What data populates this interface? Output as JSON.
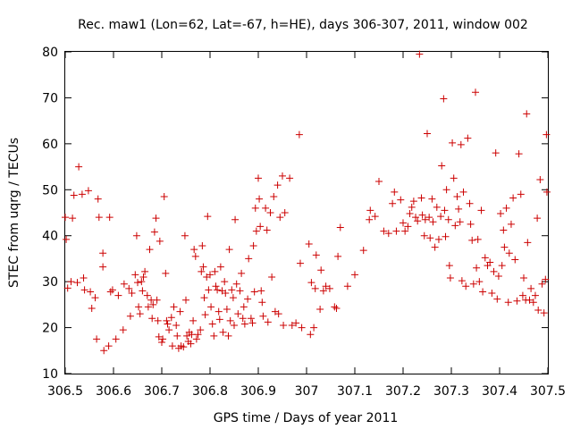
{
  "chart_data": {
    "type": "scatter",
    "title": "Rec. maw1 (Lon=62, Lat=-67, h=HE), days 306-307, 2011, window 002",
    "xlabel": "GPS time / Days of year 2011",
    "ylabel": "STEC from uqrg / TECUs",
    "xlim": [
      306.5,
      307.5
    ],
    "ylim": [
      10,
      80
    ],
    "xticks": [
      306.5,
      306.6,
      306.7,
      306.8,
      306.9,
      307,
      307.1,
      307.2,
      307.3,
      307.4,
      307.5
    ],
    "xtick_labels": [
      "306.5",
      "306.6",
      "306.7",
      "306.8",
      "306.9",
      "307",
      "307.1",
      "307.2",
      "307.3",
      "307.4",
      "307.5"
    ],
    "yticks": [
      10,
      20,
      30,
      40,
      50,
      60,
      70,
      80
    ],
    "ytick_labels": [
      "10",
      "20",
      "30",
      "40",
      "50",
      "60",
      "70",
      "80"
    ],
    "grid": false,
    "marker": "plus",
    "color": "#cc0000",
    "points": [
      [
        306.5,
        44.0
      ],
      [
        306.502,
        39.2
      ],
      [
        306.505,
        28.6
      ],
      [
        306.512,
        30.0
      ],
      [
        306.515,
        43.8
      ],
      [
        306.518,
        48.8
      ],
      [
        306.525,
        29.8
      ],
      [
        306.528,
        55.0
      ],
      [
        306.535,
        49.0
      ],
      [
        306.538,
        30.8
      ],
      [
        306.54,
        28.2
      ],
      [
        306.548,
        49.8
      ],
      [
        306.552,
        27.8
      ],
      [
        306.555,
        24.2
      ],
      [
        306.562,
        26.5
      ],
      [
        306.565,
        17.5
      ],
      [
        306.568,
        48.0
      ],
      [
        306.57,
        44.0
      ],
      [
        306.578,
        36.2
      ],
      [
        306.578,
        33.2
      ],
      [
        306.58,
        15.0
      ],
      [
        306.59,
        16.0
      ],
      [
        306.592,
        44.0
      ],
      [
        306.594,
        27.8
      ],
      [
        306.598,
        28.2
      ],
      [
        306.605,
        17.5
      ],
      [
        306.61,
        27.0
      ],
      [
        306.62,
        19.5
      ],
      [
        306.622,
        29.5
      ],
      [
        306.632,
        28.5
      ],
      [
        306.635,
        22.5
      ],
      [
        306.638,
        27.5
      ],
      [
        306.645,
        31.5
      ],
      [
        306.648,
        40.0
      ],
      [
        306.65,
        29.8
      ],
      [
        306.652,
        24.5
      ],
      [
        306.655,
        23.0
      ],
      [
        306.658,
        30.0
      ],
      [
        306.66,
        28.0
      ],
      [
        306.662,
        31.0
      ],
      [
        306.665,
        32.2
      ],
      [
        306.67,
        27.0
      ],
      [
        306.672,
        24.5
      ],
      [
        306.675,
        37.0
      ],
      [
        306.678,
        26.0
      ],
      [
        306.68,
        22.0
      ],
      [
        306.682,
        25.0
      ],
      [
        306.685,
        40.8
      ],
      [
        306.688,
        43.8
      ],
      [
        306.69,
        26.0
      ],
      [
        306.692,
        21.5
      ],
      [
        306.694,
        18.0
      ],
      [
        306.696,
        38.8
      ],
      [
        306.7,
        16.8
      ],
      [
        306.702,
        17.5
      ],
      [
        306.705,
        48.5
      ],
      [
        306.708,
        31.8
      ],
      [
        306.71,
        21.5
      ],
      [
        306.712,
        20.8
      ],
      [
        306.715,
        19.5
      ],
      [
        306.72,
        22.2
      ],
      [
        306.722,
        16.0
      ],
      [
        306.725,
        24.5
      ],
      [
        306.73,
        20.5
      ],
      [
        306.732,
        18.2
      ],
      [
        306.735,
        15.5
      ],
      [
        306.738,
        23.5
      ],
      [
        306.74,
        16.0
      ],
      [
        306.745,
        15.8
      ],
      [
        306.748,
        40.0
      ],
      [
        306.75,
        26.0
      ],
      [
        306.752,
        18.2
      ],
      [
        306.755,
        17.0
      ],
      [
        306.757,
        19.0
      ],
      [
        306.76,
        16.5
      ],
      [
        306.762,
        18.5
      ],
      [
        306.765,
        21.5
      ],
      [
        306.767,
        37.0
      ],
      [
        306.77,
        35.5
      ],
      [
        306.772,
        17.5
      ],
      [
        306.775,
        18.5
      ],
      [
        306.78,
        19.5
      ],
      [
        306.782,
        32.2
      ],
      [
        306.784,
        37.8
      ],
      [
        306.786,
        33.2
      ],
      [
        306.788,
        26.5
      ],
      [
        306.79,
        22.8
      ],
      [
        306.793,
        31.0
      ],
      [
        306.795,
        44.2
      ],
      [
        306.797,
        28.2
      ],
      [
        306.8,
        31.5
      ],
      [
        306.802,
        24.5
      ],
      [
        306.805,
        20.8
      ],
      [
        306.808,
        18.2
      ],
      [
        306.81,
        32.2
      ],
      [
        306.812,
        29.0
      ],
      [
        306.815,
        28.2
      ],
      [
        306.818,
        23.5
      ],
      [
        306.82,
        21.8
      ],
      [
        306.822,
        33.2
      ],
      [
        306.825,
        28.0
      ],
      [
        306.827,
        19.0
      ],
      [
        306.83,
        30.0
      ],
      [
        306.832,
        27.5
      ],
      [
        306.835,
        24.0
      ],
      [
        306.838,
        18.2
      ],
      [
        306.84,
        37.0
      ],
      [
        306.842,
        21.5
      ],
      [
        306.845,
        28.2
      ],
      [
        306.848,
        26.5
      ],
      [
        306.85,
        20.5
      ],
      [
        306.852,
        43.5
      ],
      [
        306.855,
        29.5
      ],
      [
        306.858,
        23.0
      ],
      [
        306.862,
        28.0
      ],
      [
        306.865,
        31.8
      ],
      [
        306.868,
        22.0
      ],
      [
        306.87,
        24.5
      ],
      [
        306.872,
        20.8
      ],
      [
        306.878,
        26.2
      ],
      [
        306.88,
        35.0
      ],
      [
        306.885,
        22.0
      ],
      [
        306.888,
        21.0
      ],
      [
        306.89,
        37.8
      ],
      [
        306.892,
        27.8
      ],
      [
        306.894,
        46.0
      ],
      [
        306.896,
        41.0
      ],
      [
        306.9,
        52.5
      ],
      [
        306.902,
        48.0
      ],
      [
        306.904,
        42.0
      ],
      [
        306.906,
        28.0
      ],
      [
        306.908,
        25.5
      ],
      [
        306.91,
        22.5
      ],
      [
        306.915,
        46.0
      ],
      [
        306.918,
        41.2
      ],
      [
        306.92,
        21.2
      ],
      [
        306.925,
        45.0
      ],
      [
        306.928,
        31.0
      ],
      [
        306.932,
        48.5
      ],
      [
        306.935,
        23.5
      ],
      [
        306.94,
        51.0
      ],
      [
        306.942,
        23.0
      ],
      [
        306.945,
        44.0
      ],
      [
        306.95,
        53.0
      ],
      [
        306.952,
        20.5
      ],
      [
        306.955,
        45.0
      ],
      [
        306.965,
        52.5
      ],
      [
        306.97,
        20.5
      ],
      [
        306.978,
        21.0
      ],
      [
        306.985,
        62.0
      ],
      [
        306.987,
        34.0
      ],
      [
        306.99,
        20.0
      ],
      [
        307.005,
        38.2
      ],
      [
        307.008,
        18.5
      ],
      [
        307.01,
        29.8
      ],
      [
        307.015,
        20.0
      ],
      [
        307.018,
        28.5
      ],
      [
        307.02,
        35.8
      ],
      [
        307.028,
        24.0
      ],
      [
        307.03,
        32.5
      ],
      [
        307.035,
        28.0
      ],
      [
        307.04,
        29.0
      ],
      [
        307.048,
        28.5
      ],
      [
        307.058,
        24.5
      ],
      [
        307.062,
        24.2
      ],
      [
        307.065,
        35.5
      ],
      [
        307.07,
        41.8
      ],
      [
        307.085,
        29.0
      ],
      [
        307.1,
        31.5
      ],
      [
        307.118,
        36.8
      ],
      [
        307.13,
        43.5
      ],
      [
        307.132,
        45.5
      ],
      [
        307.142,
        44.2
      ],
      [
        307.15,
        51.8
      ],
      [
        307.16,
        41.0
      ],
      [
        307.17,
        40.5
      ],
      [
        307.178,
        47.0
      ],
      [
        307.182,
        49.5
      ],
      [
        307.186,
        41.0
      ],
      [
        307.195,
        47.8
      ],
      [
        307.2,
        42.8
      ],
      [
        307.204,
        41.0
      ],
      [
        307.21,
        42.0
      ],
      [
        307.214,
        44.8
      ],
      [
        307.218,
        46.2
      ],
      [
        307.222,
        47.5
      ],
      [
        307.226,
        44.0
      ],
      [
        307.23,
        43.2
      ],
      [
        307.234,
        79.5
      ],
      [
        307.238,
        48.2
      ],
      [
        307.24,
        44.5
      ],
      [
        307.244,
        40.0
      ],
      [
        307.246,
        43.5
      ],
      [
        307.25,
        62.2
      ],
      [
        307.254,
        44.0
      ],
      [
        307.256,
        39.5
      ],
      [
        307.26,
        48.0
      ],
      [
        307.262,
        43.0
      ],
      [
        307.266,
        37.5
      ],
      [
        307.27,
        46.2
      ],
      [
        307.274,
        39.2
      ],
      [
        307.278,
        44.2
      ],
      [
        307.28,
        55.2
      ],
      [
        307.284,
        69.8
      ],
      [
        307.286,
        45.5
      ],
      [
        307.288,
        39.8
      ],
      [
        307.29,
        50.0
      ],
      [
        307.294,
        43.5
      ],
      [
        307.296,
        33.5
      ],
      [
        307.298,
        30.8
      ],
      [
        307.302,
        60.2
      ],
      [
        307.305,
        52.5
      ],
      [
        307.308,
        42.2
      ],
      [
        307.312,
        48.5
      ],
      [
        307.315,
        45.8
      ],
      [
        307.318,
        43.0
      ],
      [
        307.32,
        59.8
      ],
      [
        307.322,
        30.2
      ],
      [
        307.325,
        49.5
      ],
      [
        307.33,
        29.0
      ],
      [
        307.334,
        61.2
      ],
      [
        307.338,
        47.0
      ],
      [
        307.34,
        42.5
      ],
      [
        307.343,
        39.0
      ],
      [
        307.346,
        29.5
      ],
      [
        307.35,
        71.2
      ],
      [
        307.352,
        33.0
      ],
      [
        307.355,
        39.2
      ],
      [
        307.358,
        30.0
      ],
      [
        307.362,
        45.5
      ],
      [
        307.365,
        27.8
      ],
      [
        307.37,
        35.2
      ],
      [
        307.375,
        33.5
      ],
      [
        307.38,
        34.2
      ],
      [
        307.384,
        27.5
      ],
      [
        307.388,
        32.2
      ],
      [
        307.392,
        58.0
      ],
      [
        307.395,
        26.2
      ],
      [
        307.398,
        31.2
      ],
      [
        307.402,
        44.8
      ],
      [
        307.405,
        33.5
      ],
      [
        307.408,
        41.2
      ],
      [
        307.41,
        37.5
      ],
      [
        307.414,
        46.0
      ],
      [
        307.418,
        25.5
      ],
      [
        307.42,
        36.2
      ],
      [
        307.424,
        42.5
      ],
      [
        307.428,
        48.2
      ],
      [
        307.432,
        34.8
      ],
      [
        307.436,
        25.8
      ],
      [
        307.44,
        57.8
      ],
      [
        307.444,
        49.0
      ],
      [
        307.448,
        27.0
      ],
      [
        307.45,
        30.8
      ],
      [
        307.454,
        26.0
      ],
      [
        307.456,
        66.5
      ],
      [
        307.458,
        38.5
      ],
      [
        307.462,
        26.0
      ],
      [
        307.465,
        28.5
      ],
      [
        307.47,
        25.5
      ],
      [
        307.474,
        27.0
      ],
      [
        307.478,
        43.8
      ],
      [
        307.48,
        23.8
      ],
      [
        307.484,
        52.2
      ],
      [
        307.488,
        29.5
      ],
      [
        307.492,
        23.2
      ],
      [
        307.495,
        30.5
      ],
      [
        307.497,
        62.0
      ],
      [
        307.498,
        49.5
      ]
    ]
  }
}
